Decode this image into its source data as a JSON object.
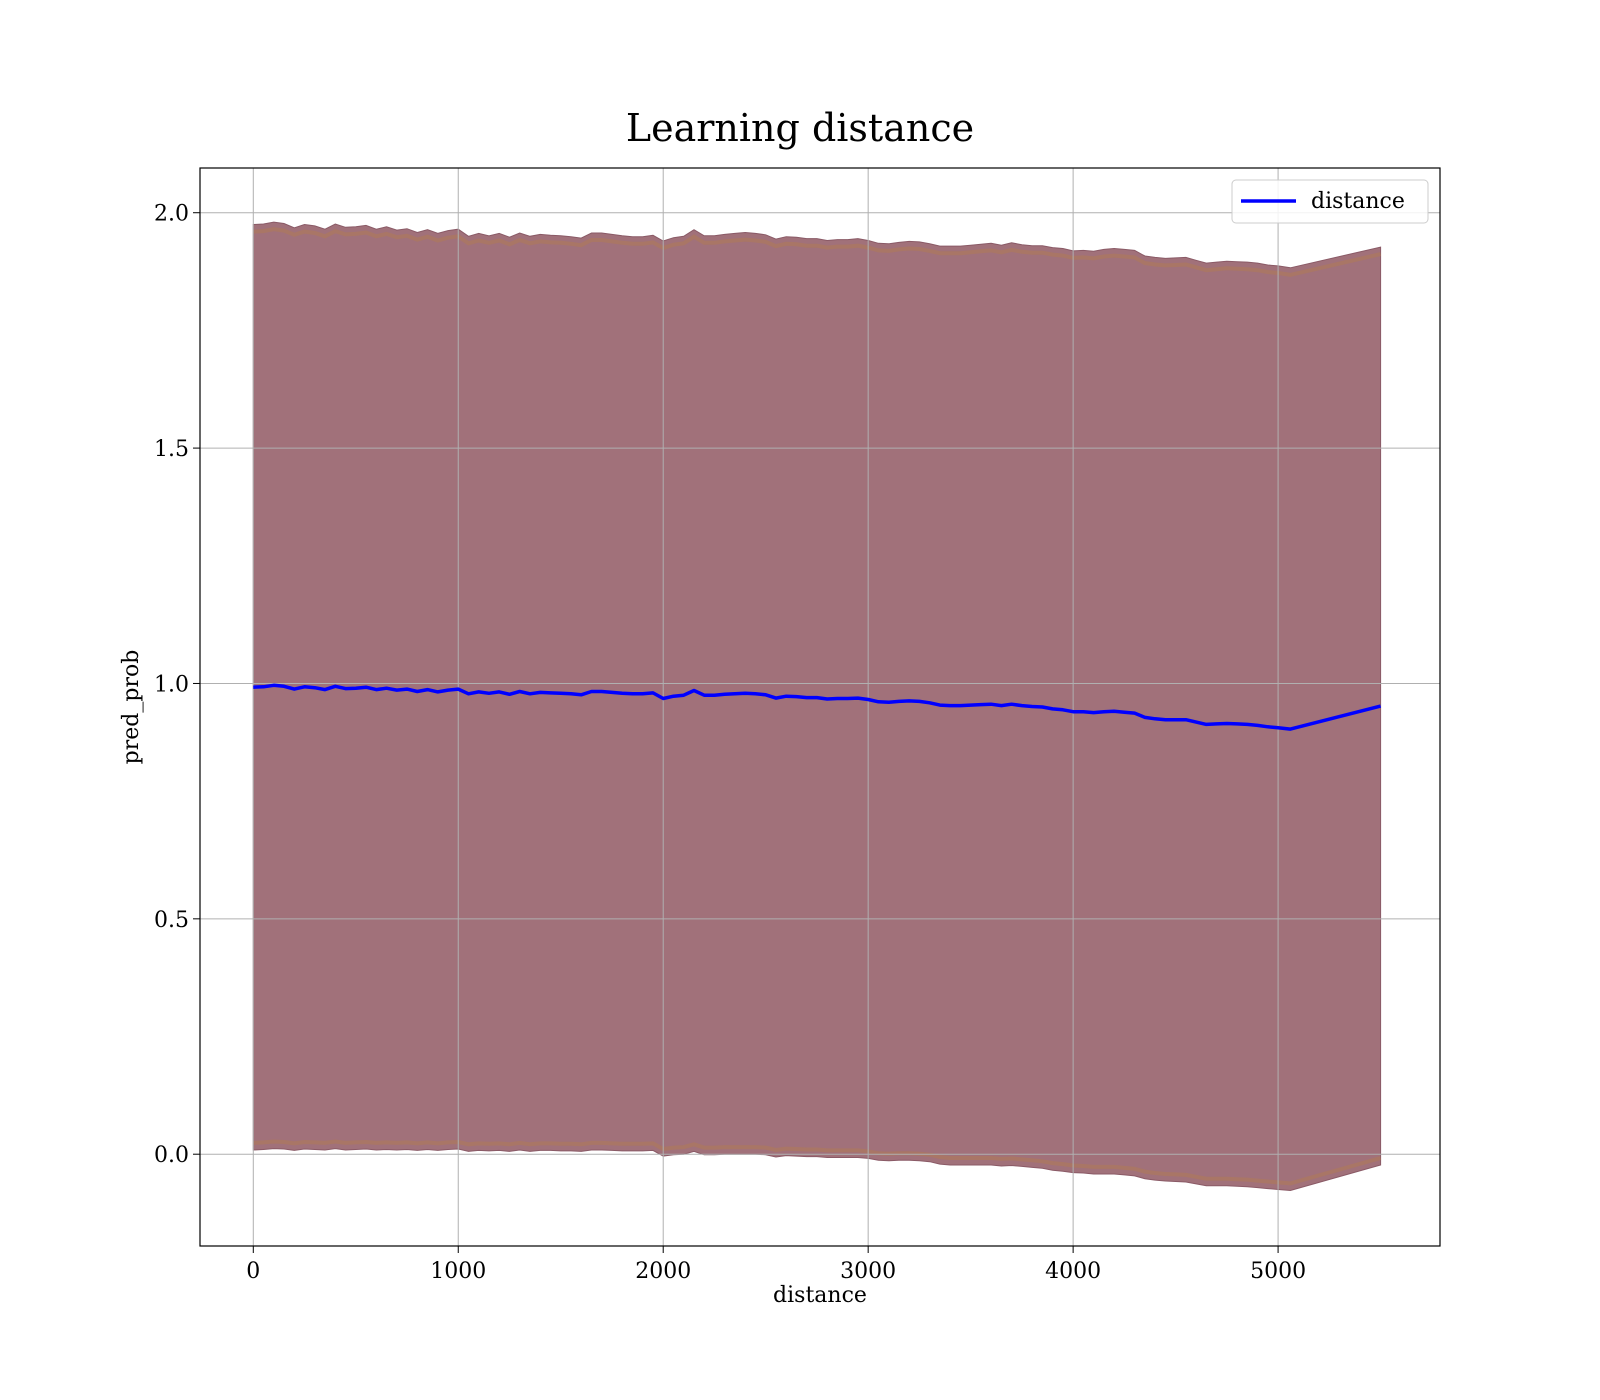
{
  "chart_data": {
    "type": "line",
    "title": "Learning distance",
    "xlabel": "distance",
    "ylabel": "pred_prob",
    "xlim": [
      -260,
      5790
    ],
    "ylim": [
      -0.195,
      2.095
    ],
    "xticks": [
      0,
      1000,
      2000,
      3000,
      4000,
      5000
    ],
    "yticks": [
      0.0,
      0.5,
      1.0,
      1.5,
      2.0
    ],
    "xtick_labels": [
      "0",
      "1000",
      "2000",
      "3000",
      "4000",
      "5000"
    ],
    "ytick_labels": [
      "0.0",
      "0.5",
      "1.0",
      "1.5",
      "2.0"
    ],
    "grid": true,
    "legend_position": "top-right",
    "band_color": "#a1717a",
    "band_edge_color": "#f59a9a",
    "series": [
      {
        "name": "distance",
        "color": "#0000ff",
        "x": [
          0,
          50,
          100,
          150,
          200,
          250,
          300,
          350,
          400,
          450,
          500,
          550,
          600,
          650,
          700,
          750,
          800,
          850,
          900,
          950,
          1000,
          1050,
          1100,
          1150,
          1200,
          1250,
          1300,
          1350,
          1400,
          1450,
          1500,
          1550,
          1600,
          1650,
          1700,
          1750,
          1800,
          1850,
          1900,
          1950,
          2000,
          2050,
          2100,
          2150,
          2200,
          2250,
          2300,
          2350,
          2400,
          2450,
          2500,
          2550,
          2600,
          2650,
          2700,
          2750,
          2800,
          2850,
          2900,
          2950,
          3000,
          3050,
          3100,
          3150,
          3200,
          3250,
          3300,
          3350,
          3400,
          3450,
          3500,
          3550,
          3600,
          3650,
          3700,
          3750,
          3800,
          3850,
          3900,
          3950,
          4000,
          4050,
          4100,
          4150,
          4200,
          4250,
          4300,
          4350,
          4400,
          4450,
          4500,
          4550,
          4600,
          4650,
          4700,
          4750,
          4800,
          4850,
          4900,
          4950,
          5000,
          5060,
          5500
        ],
        "values": [
          0.992,
          0.993,
          0.996,
          0.994,
          0.988,
          0.993,
          0.991,
          0.987,
          0.994,
          0.989,
          0.99,
          0.992,
          0.987,
          0.99,
          0.986,
          0.988,
          0.983,
          0.987,
          0.982,
          0.986,
          0.988,
          0.978,
          0.982,
          0.979,
          0.982,
          0.977,
          0.983,
          0.978,
          0.981,
          0.98,
          0.979,
          0.978,
          0.976,
          0.983,
          0.983,
          0.981,
          0.979,
          0.978,
          0.978,
          0.98,
          0.968,
          0.973,
          0.975,
          0.985,
          0.975,
          0.975,
          0.977,
          0.978,
          0.979,
          0.978,
          0.976,
          0.969,
          0.973,
          0.972,
          0.97,
          0.97,
          0.967,
          0.968,
          0.968,
          0.969,
          0.966,
          0.961,
          0.96,
          0.962,
          0.963,
          0.962,
          0.959,
          0.954,
          0.953,
          0.953,
          0.954,
          0.955,
          0.956,
          0.953,
          0.956,
          0.953,
          0.951,
          0.95,
          0.946,
          0.944,
          0.94,
          0.94,
          0.938,
          0.94,
          0.941,
          0.939,
          0.937,
          0.928,
          0.925,
          0.923,
          0.923,
          0.923,
          0.918,
          0.913,
          0.914,
          0.915,
          0.914,
          0.913,
          0.911,
          0.908,
          0.906,
          0.903,
          0.952
        ],
        "band_halfwidth": [
          0.983,
          0.983,
          0.984,
          0.983,
          0.98,
          0.982,
          0.981,
          0.978,
          0.982,
          0.98,
          0.98,
          0.981,
          0.978,
          0.98,
          0.977,
          0.978,
          0.975,
          0.977,
          0.974,
          0.976,
          0.977,
          0.972,
          0.974,
          0.972,
          0.974,
          0.971,
          0.974,
          0.972,
          0.973,
          0.972,
          0.972,
          0.971,
          0.97,
          0.974,
          0.974,
          0.973,
          0.972,
          0.971,
          0.971,
          0.972,
          0.972,
          0.974,
          0.975,
          0.979,
          0.976,
          0.976,
          0.977,
          0.978,
          0.979,
          0.978,
          0.977,
          0.975,
          0.976,
          0.976,
          0.975,
          0.975,
          0.974,
          0.975,
          0.975,
          0.976,
          0.975,
          0.974,
          0.974,
          0.975,
          0.976,
          0.976,
          0.975,
          0.975,
          0.976,
          0.976,
          0.977,
          0.978,
          0.979,
          0.978,
          0.98,
          0.979,
          0.979,
          0.98,
          0.98,
          0.98,
          0.979,
          0.98,
          0.98,
          0.982,
          0.983,
          0.983,
          0.983,
          0.98,
          0.98,
          0.98,
          0.981,
          0.982,
          0.981,
          0.98,
          0.981,
          0.982,
          0.982,
          0.982,
          0.982,
          0.981,
          0.981,
          0.98,
          0.975
        ]
      }
    ]
  }
}
